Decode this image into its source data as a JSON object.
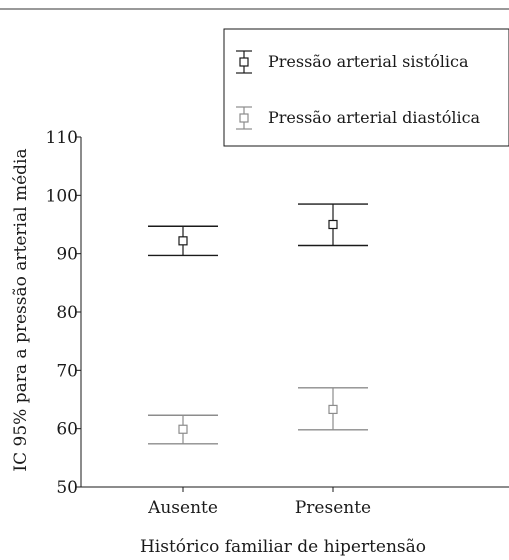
{
  "chart_data": {
    "type": "error-bar",
    "title": "",
    "xlabel": "Histórico familiar de hipertensão",
    "ylabel": "IC 95% para a pressão arterial média",
    "categories": [
      "Ausente",
      "Presente"
    ],
    "ylim": [
      50,
      110
    ],
    "yticks": [
      50,
      60,
      70,
      80,
      90,
      100,
      110
    ],
    "grid": false,
    "legend_position": "top-right",
    "series": [
      {
        "name": "Pressão arterial sistólica",
        "color": "#1a1a1a",
        "points": [
          {
            "category": "Ausente",
            "mean": 92.2,
            "lower": 89.7,
            "upper": 94.7
          },
          {
            "category": "Presente",
            "mean": 95.0,
            "lower": 91.4,
            "upper": 98.5
          }
        ]
      },
      {
        "name": "Pressão arterial diastólica",
        "color": "#8c8c8c",
        "points": [
          {
            "category": "Ausente",
            "mean": 59.9,
            "lower": 57.4,
            "upper": 62.3
          },
          {
            "category": "Presente",
            "mean": 63.3,
            "lower": 59.8,
            "upper": 67.0
          }
        ]
      }
    ]
  }
}
